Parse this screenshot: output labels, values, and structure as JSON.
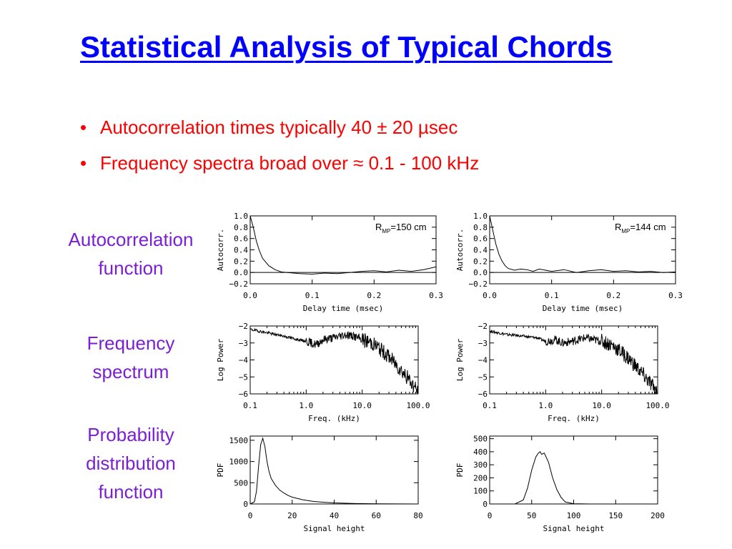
{
  "title": "Statistical Analysis of Typical Chords",
  "bullets": [
    "Autocorrelation times typically 40 ± 20 µsec",
    "Frequency spectra broad over ≈ 0.1 - 100 kHz"
  ],
  "row_labels": {
    "autocorrelation": [
      "Autocorrelation",
      "function"
    ],
    "frequency": [
      "Frequency",
      "spectrum"
    ],
    "pdf": [
      "Probability",
      "distribution",
      "function"
    ]
  },
  "chart_data": [
    {
      "type": "line",
      "ylabel": "Autocorr.",
      "xlabel": "Delay time (msec)",
      "annotation": {
        "prefix": "R",
        "sub": "MP",
        "suffix": "=150 cm"
      },
      "xlim": [
        0,
        0.3
      ],
      "ylim": [
        -0.2,
        1.0
      ],
      "xticks": [
        "0.0",
        "0.1",
        "0.2",
        "0.3"
      ],
      "yticks": [
        "−0.2",
        "0.0",
        "0.2",
        "0.4",
        "0.6",
        "0.8",
        "1.0"
      ],
      "ytickvals": [
        -0.2,
        0,
        0.2,
        0.4,
        0.6,
        0.8,
        1.0
      ],
      "hline": 0,
      "x": [
        0,
        0.005,
        0.01,
        0.015,
        0.02,
        0.03,
        0.04,
        0.05,
        0.06,
        0.07,
        0.08,
        0.1,
        0.12,
        0.14,
        0.16,
        0.18,
        0.2,
        0.22,
        0.24,
        0.26,
        0.28,
        0.3
      ],
      "y": [
        1.0,
        0.8,
        0.55,
        0.38,
        0.25,
        0.12,
        0.05,
        0.01,
        0.0,
        -0.01,
        -0.02,
        -0.03,
        -0.01,
        -0.02,
        0.0,
        0.02,
        0.03,
        0.01,
        0.04,
        0.02,
        0.05,
        0.1
      ]
    },
    {
      "type": "line",
      "ylabel": "Autocorr.",
      "xlabel": "Delay time (msec)",
      "annotation": {
        "prefix": "R",
        "sub": "MP",
        "suffix": "=144 cm"
      },
      "xlim": [
        0,
        0.3
      ],
      "ylim": [
        -0.2,
        1.0
      ],
      "xticks": [
        "0.0",
        "0.1",
        "0.2",
        "0.3"
      ],
      "yticks": [
        "−0.2",
        "0.0",
        "0.2",
        "0.4",
        "0.6",
        "0.8",
        "1.0"
      ],
      "ytickvals": [
        -0.2,
        0,
        0.2,
        0.4,
        0.6,
        0.8,
        1.0
      ],
      "hline": 0,
      "x": [
        0,
        0.005,
        0.01,
        0.015,
        0.02,
        0.025,
        0.03,
        0.04,
        0.05,
        0.06,
        0.07,
        0.08,
        0.1,
        0.12,
        0.14,
        0.16,
        0.18,
        0.2,
        0.22,
        0.24,
        0.26,
        0.28,
        0.3
      ],
      "y": [
        1.0,
        0.75,
        0.5,
        0.32,
        0.2,
        0.12,
        0.07,
        0.04,
        0.06,
        0.05,
        0.02,
        0.06,
        0.02,
        0.05,
        0.0,
        0.03,
        0.05,
        0.02,
        0.03,
        0.01,
        0.02,
        0.0,
        0.01
      ]
    },
    {
      "type": "line",
      "ylabel": "Log Power",
      "xlabel": "Freq. (kHz)",
      "xscale": "log",
      "xlim": [
        0.1,
        100.0
      ],
      "ylim": [
        -6,
        -2
      ],
      "xticks": [
        "0.1",
        "1.0",
        "10.0",
        "100.0"
      ],
      "xtickvals": [
        0.1,
        1.0,
        10.0,
        100.0
      ],
      "yticks": [
        "−6",
        "−5",
        "−4",
        "−3",
        "−2"
      ],
      "ytickvals": [
        -6,
        -5,
        -4,
        -3,
        -2
      ],
      "x": [
        0.1,
        0.2,
        0.4,
        0.7,
        1.0,
        1.5,
        2,
        3,
        5,
        7,
        10,
        15,
        20,
        30,
        50,
        70,
        100
      ],
      "y": [
        -2.2,
        -2.4,
        -2.6,
        -2.8,
        -2.9,
        -3.1,
        -2.8,
        -2.7,
        -2.5,
        -2.6,
        -2.8,
        -3.0,
        -3.3,
        -3.8,
        -4.6,
        -5.2,
        -5.9
      ]
    },
    {
      "type": "line",
      "ylabel": "Log Power",
      "xlabel": "Freq. (kHz)",
      "xscale": "log",
      "xlim": [
        0.1,
        100.0
      ],
      "ylim": [
        -6,
        -2
      ],
      "xticks": [
        "0.1",
        "1.0",
        "10.0",
        "100.0"
      ],
      "xtickvals": [
        0.1,
        1.0,
        10.0,
        100.0
      ],
      "yticks": [
        "−6",
        "−5",
        "−4",
        "−3",
        "−2"
      ],
      "ytickvals": [
        -6,
        -5,
        -4,
        -3,
        -2
      ],
      "x": [
        0.1,
        0.2,
        0.4,
        0.7,
        1.0,
        1.5,
        2,
        3,
        5,
        7,
        10,
        15,
        20,
        30,
        50,
        70,
        100
      ],
      "y": [
        -2.3,
        -2.5,
        -2.6,
        -2.7,
        -2.9,
        -2.8,
        -3.0,
        -2.9,
        -2.7,
        -2.8,
        -2.9,
        -3.1,
        -3.4,
        -3.9,
        -4.7,
        -5.3,
        -5.9
      ]
    },
    {
      "type": "line",
      "ylabel": "PDF",
      "xlabel": "Signal height",
      "xlim": [
        0,
        80
      ],
      "ylim": [
        0,
        1600
      ],
      "xticks": [
        "0",
        "20",
        "40",
        "60",
        "80"
      ],
      "xtickvals": [
        0,
        20,
        40,
        60,
        80
      ],
      "yticks": [
        "0",
        "500",
        "1000",
        "1500"
      ],
      "ytickvals": [
        0,
        500,
        1000,
        1500
      ],
      "x": [
        0,
        2,
        3,
        4,
        5,
        6,
        7,
        8,
        9,
        10,
        12,
        14,
        16,
        18,
        20,
        25,
        30,
        35,
        40,
        50,
        60,
        70,
        80
      ],
      "y": [
        0,
        50,
        300,
        900,
        1400,
        1550,
        1350,
        1000,
        760,
        600,
        440,
        330,
        260,
        200,
        160,
        100,
        60,
        40,
        25,
        10,
        5,
        2,
        0
      ]
    },
    {
      "type": "line",
      "ylabel": "PDF",
      "xlabel": "Signal height",
      "xlim": [
        0,
        200
      ],
      "ylim": [
        0,
        520
      ],
      "xticks": [
        "0",
        "50",
        "100",
        "150",
        "200"
      ],
      "xtickvals": [
        0,
        50,
        100,
        150,
        200
      ],
      "yticks": [
        "0",
        "100",
        "200",
        "300",
        "400",
        "500"
      ],
      "ytickvals": [
        0,
        100,
        200,
        300,
        400,
        500
      ],
      "x": [
        0,
        30,
        40,
        45,
        50,
        55,
        58,
        60,
        62,
        65,
        70,
        75,
        80,
        85,
        90,
        100,
        120,
        200
      ],
      "y": [
        0,
        0,
        30,
        120,
        260,
        360,
        390,
        400,
        380,
        390,
        320,
        200,
        110,
        50,
        15,
        2,
        0,
        0
      ]
    }
  ]
}
